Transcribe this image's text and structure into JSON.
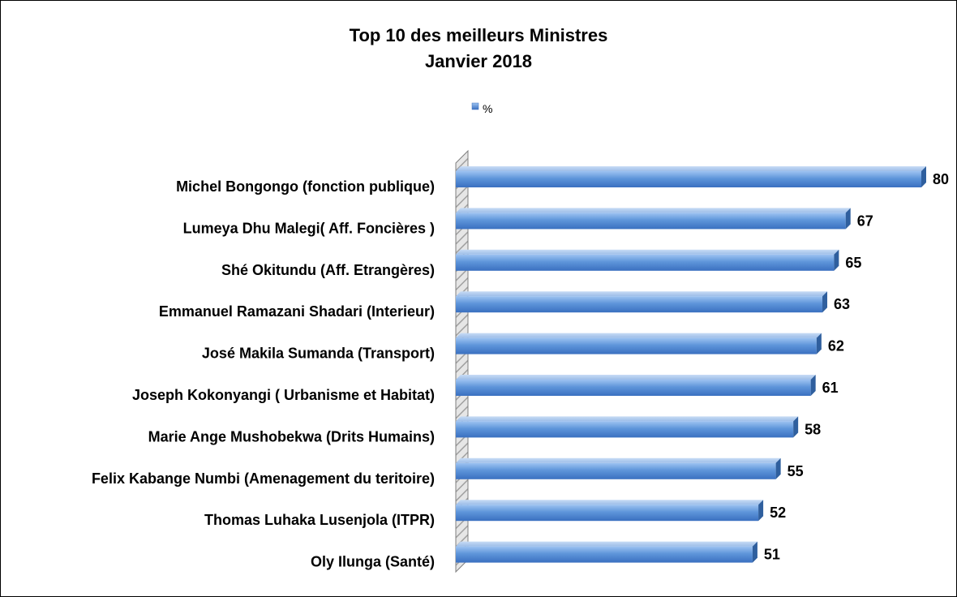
{
  "chart_data": {
    "type": "bar",
    "orientation": "horizontal",
    "title": [
      "Top 10 des meilleurs Ministres",
      "Janvier 2018"
    ],
    "legend": {
      "entries": [
        "%"
      ],
      "position": "top"
    },
    "series": [
      {
        "name": "%",
        "color": "#4F81BD",
        "values": [
          80,
          67,
          65,
          63,
          62,
          61,
          58,
          55,
          52,
          51
        ]
      }
    ],
    "categories": [
      "Michel Bongongo (fonction publique)",
      "Lumeya Dhu Malegi( Aff. Foncières )",
      "Shé Okitundu (Aff. Etrangères)",
      "Emmanuel Ramazani Shadari (Interieur)",
      "José Makila Sumanda (Transport)",
      "Joseph Kokonyangi ( Urbanisme et Habitat)",
      "Marie Ange Mushobekwa (Drits Humains)",
      "Felix Kabange Numbi (Amenagement du teritoire)",
      "Thomas Luhaka Lusenjola (ITPR)",
      "Oly Ilunga (Santé)"
    ],
    "xlim": [
      0,
      80
    ],
    "grid": false,
    "data_labels": true,
    "style": "3d-bars"
  }
}
